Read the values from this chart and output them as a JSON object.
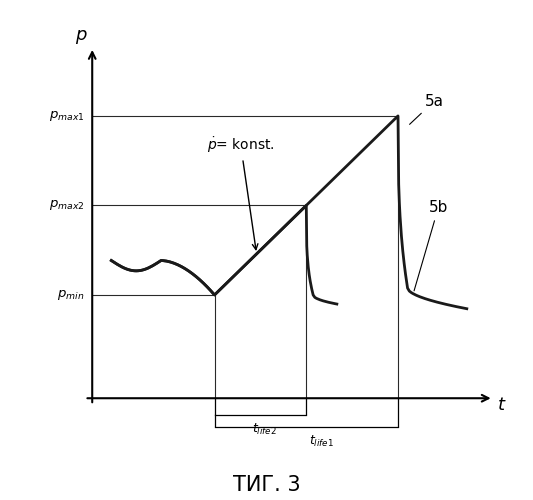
{
  "title": "ΤИГ. 3",
  "ylabel": "p",
  "xlabel": "t",
  "label_5a": "5a",
  "label_5b": "5b",
  "p_min": 0.3,
  "p_max2": 0.56,
  "p_max1": 0.82,
  "t_pmin": 0.32,
  "t_pmax2": 0.56,
  "t_pmax1": 0.8,
  "background_color": "#ffffff",
  "line_color": "#1a1a1a"
}
